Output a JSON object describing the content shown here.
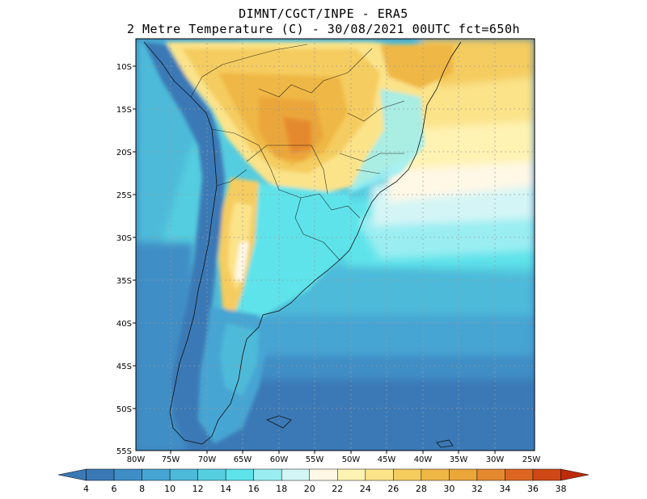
{
  "header": {
    "line1": "DIMNT/CGCT/INPE -  ERA5",
    "line2": "2 Metre Temperature (C) -  30/08/2021 00UTC fct=650h"
  },
  "map": {
    "lat_labels": [
      "10S",
      "15S",
      "20S",
      "25S",
      "30S",
      "35S",
      "40S",
      "45S",
      "50S",
      "55S"
    ],
    "lon_labels": [
      "80W",
      "75W",
      "70W",
      "65W",
      "60W",
      "55W",
      "50W",
      "45W",
      "40W",
      "35W",
      "30W",
      "25W"
    ],
    "lat_range": [
      -55,
      -7
    ],
    "lon_range": [
      -80,
      -25
    ]
  },
  "colorbar": {
    "labels": [
      "4",
      "6",
      "8",
      "10",
      "12",
      "14",
      "16",
      "18",
      "20",
      "22",
      "24",
      "26",
      "28",
      "30",
      "32",
      "34",
      "36",
      "38"
    ],
    "colors": [
      "#3a79b6",
      "#3f8ec6",
      "#47a5d3",
      "#4dbad9",
      "#55cfe0",
      "#5ee3ea",
      "#9aeef2",
      "#d4f5f5",
      "#fff8e6",
      "#fff3b3",
      "#fbe38a",
      "#f5cc5e",
      "#efb745",
      "#eba63a",
      "#e5892f",
      "#dd6722",
      "#cf4816",
      "#bd2b0c"
    ]
  }
}
